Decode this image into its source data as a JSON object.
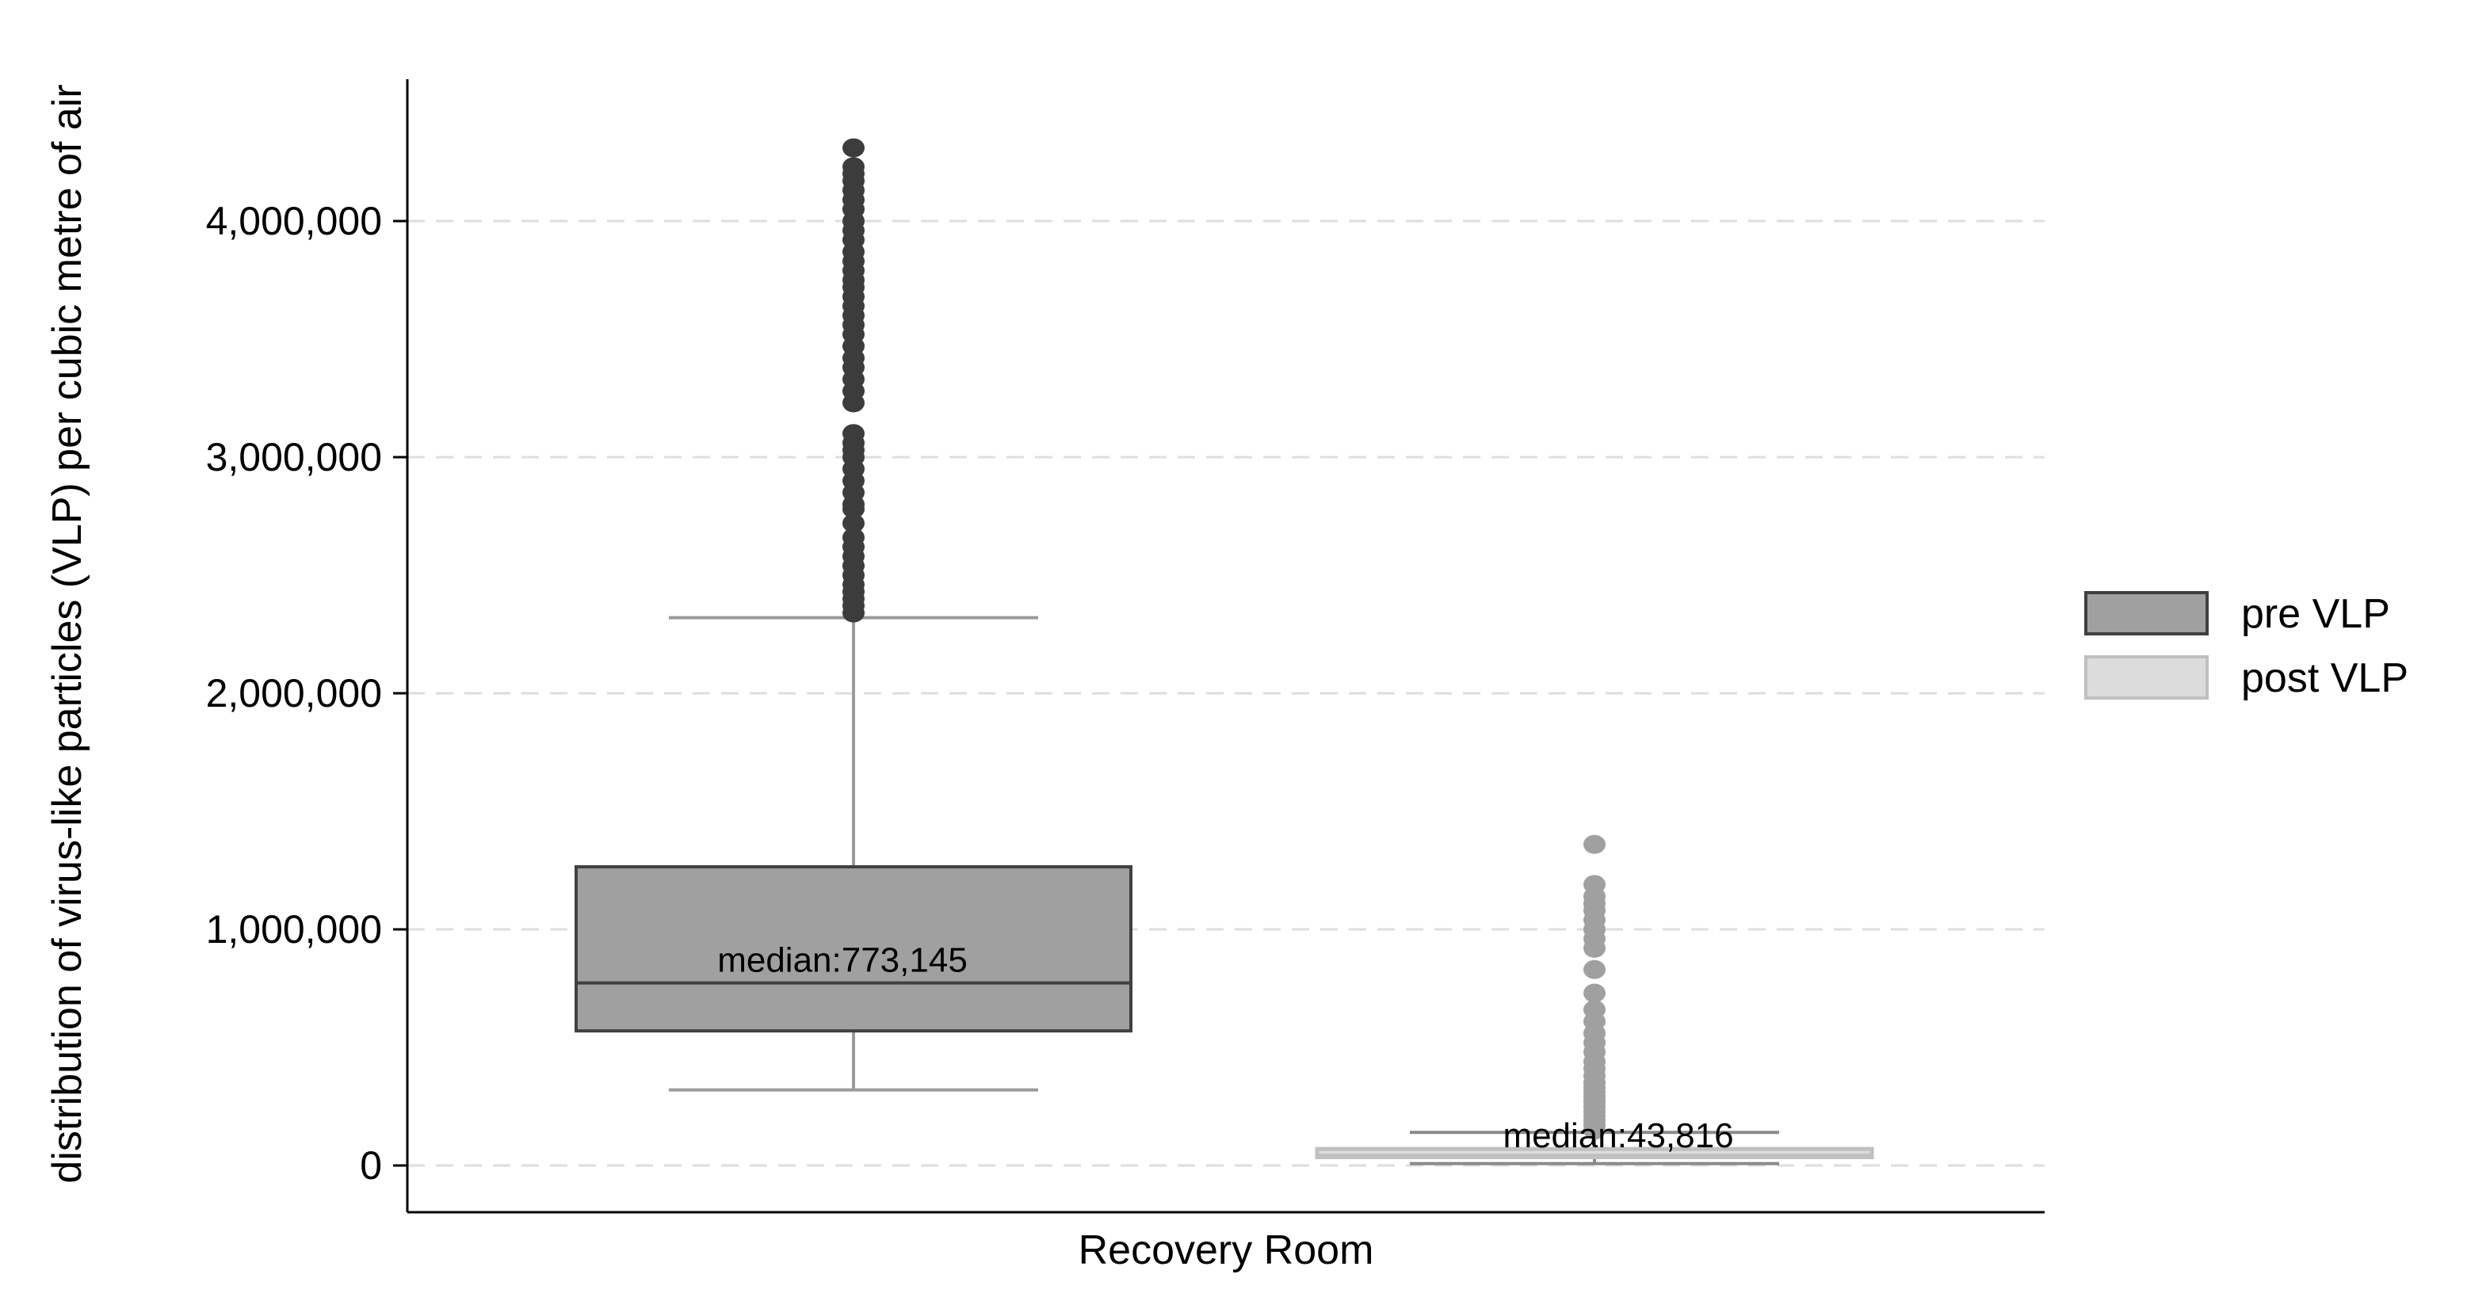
{
  "chart_data": {
    "type": "boxplot",
    "title": "",
    "xlabel": "Recovery Room",
    "ylabel": "distribution of virus-like particles (VLP) per cubic metre of air",
    "ylim": [
      -200000,
      4600000
    ],
    "yticks": [
      {
        "value": 0,
        "label": "0"
      },
      {
        "value": 1000000,
        "label": "1,000,000"
      },
      {
        "value": 2000000,
        "label": "2,000,000"
      },
      {
        "value": 3000000,
        "label": "3,000,000"
      },
      {
        "value": 4000000,
        "label": "4,000,000"
      }
    ],
    "grid": "horizontal dashed",
    "legend_position": "right",
    "series": [
      {
        "name": "pre VLP",
        "color": "#a0a0a0",
        "border_color": "#404040",
        "outlier_color": "#3c3c3c",
        "whisker_color": "#9a9a9a",
        "whisker_low": 320000,
        "q1": 570000,
        "median": 773145,
        "q3": 1265000,
        "whisker_high": 2320000,
        "median_label": "median:773,145",
        "outliers": [
          2340000,
          2370000,
          2400000,
          2430000,
          2460000,
          2500000,
          2540000,
          2580000,
          2620000,
          2660000,
          2720000,
          2780000,
          2800000,
          2850000,
          2900000,
          2950000,
          3000000,
          3030000,
          3060000,
          3100000,
          3230000,
          3280000,
          3330000,
          3380000,
          3420000,
          3470000,
          3520000,
          3560000,
          3600000,
          3640000,
          3680000,
          3720000,
          3750000,
          3790000,
          3830000,
          3870000,
          3920000,
          3960000,
          4000000,
          4050000,
          4090000,
          4130000,
          4170000,
          4200000,
          4230000,
          4310000
        ]
      },
      {
        "name": "post VLP",
        "color": "#dcdcdc",
        "border_color": "#c0c0c0",
        "outlier_color": "#a0a0a0",
        "whisker_color": "#8a8a8a",
        "whisker_low": 8000,
        "q1": 35000,
        "median": 43816,
        "q3": 70000,
        "whisker_high": 140000,
        "median_label": "median:43,816",
        "outliers": [
          150000,
          170000,
          190000,
          210000,
          230000,
          250000,
          270000,
          290000,
          310000,
          330000,
          350000,
          380000,
          410000,
          440000,
          480000,
          520000,
          560000,
          610000,
          660000,
          730000,
          830000,
          920000,
          960000,
          1000000,
          1040000,
          1080000,
          1110000,
          1140000,
          1190000,
          1360000
        ]
      }
    ]
  }
}
